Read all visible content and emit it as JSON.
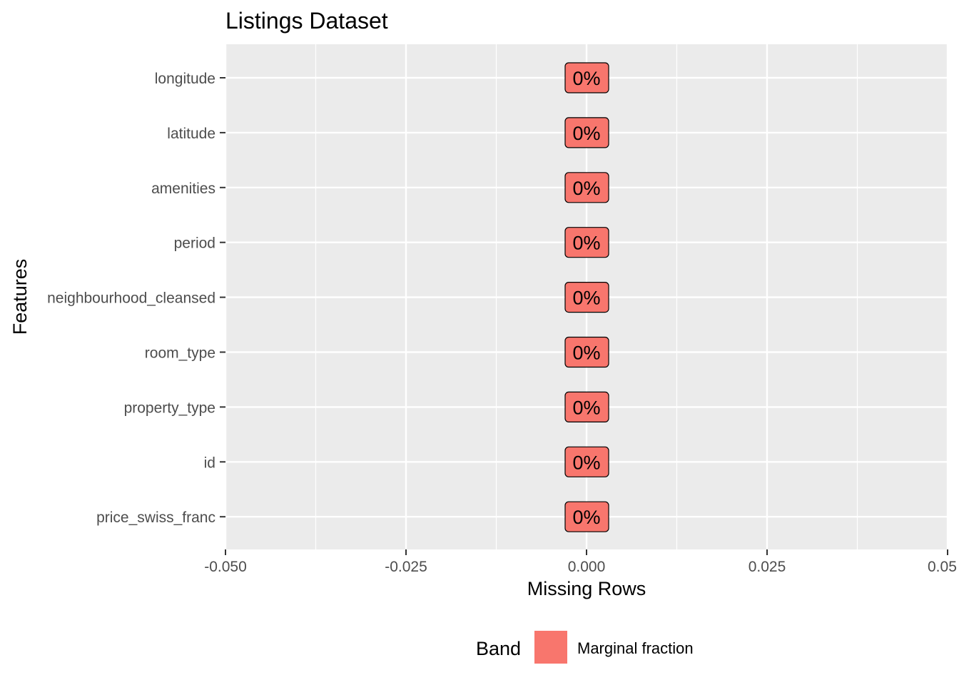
{
  "chart_data": {
    "type": "bar",
    "orientation": "horizontal",
    "title": "Listings Dataset",
    "xlabel": "Missing Rows",
    "ylabel": "Features",
    "xlim": [
      -0.05,
      0.05
    ],
    "x_ticks": [
      -0.05,
      -0.025,
      0.0,
      0.025,
      0.05
    ],
    "x_tick_labels": [
      "-0.050",
      "-0.025",
      "0.000",
      "0.025",
      "0.05"
    ],
    "categories": [
      "longitude",
      "latitude",
      "amenities",
      "period",
      "neighbourhood_cleansed",
      "room_type",
      "property_type",
      "id",
      "price_swiss_franc"
    ],
    "series": [
      {
        "name": "Marginal fraction",
        "values": [
          0,
          0,
          0,
          0,
          0,
          0,
          0,
          0,
          0
        ],
        "labels": [
          "0%",
          "0%",
          "0%",
          "0%",
          "0%",
          "0%",
          "0%",
          "0%",
          "0%"
        ]
      }
    ],
    "legend": {
      "title": "Band",
      "position": "bottom",
      "entries": [
        "Marginal fraction"
      ]
    },
    "grid": true,
    "colors": {
      "bar": "#F8766D",
      "panel": "#EBEBEB",
      "grid": "#FFFFFF"
    }
  }
}
